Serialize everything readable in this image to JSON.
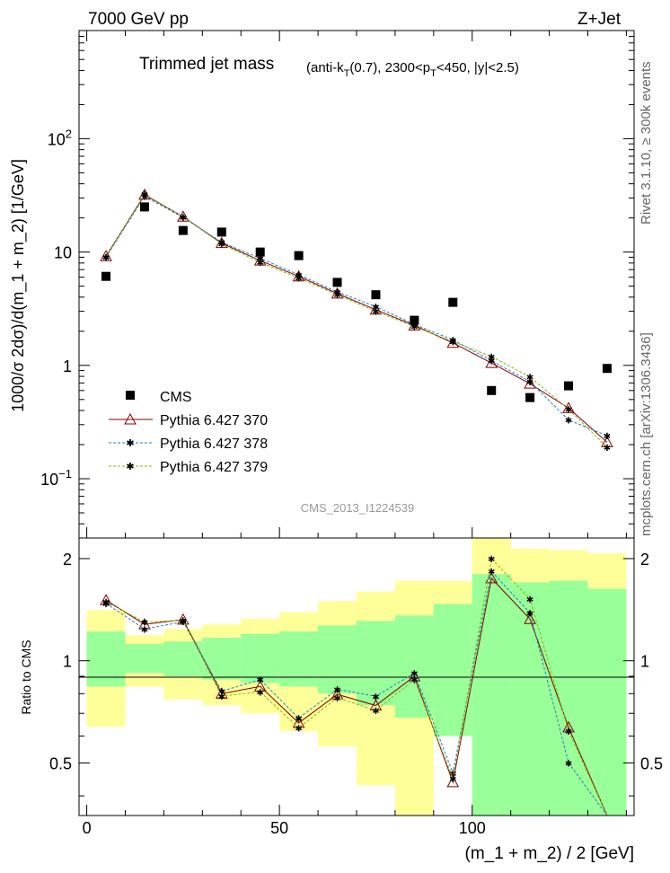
{
  "header": {
    "left": "7000 GeV pp",
    "right": "Z+Jet"
  },
  "side_labels": {
    "rivet": "Rivet 3.1.10, ≥ 300k events",
    "mcplots": "mcplots.cern.ch [arXiv:1306.3436]"
  },
  "chart_data": {
    "type": "line",
    "title_main": "Trimmed jet mass",
    "title_sub": "(anti-k",
    "title_sub_T": "T",
    "title_sub_rest": "(0.7), 2300<p",
    "title_sub_T2": "T",
    "title_sub_end": "<450, |y|<2.5)",
    "watermark": "CMS_2013_I1224539",
    "ylabel": "1000/σ 2dσ)/d(m_1 + m_2) [1/GeV]",
    "ratio_ylabel": "Ratio to CMS",
    "xlabel": "(m_1 + m_2) / 2 [GeV]",
    "xlim": [
      -2,
      142
    ],
    "ylim": [
      0.03,
      900
    ],
    "ratio_ylim": [
      0.35,
      2.3
    ],
    "x_ticks": [
      0,
      50,
      100
    ],
    "y_tick_labels": {
      "0.1": "10",
      "0.1_exp": "−1",
      "1": "1",
      "10": "10",
      "100": "10",
      "100_exp": "2"
    },
    "ratio_tick_labels": [
      "0.5",
      "1",
      "2"
    ],
    "bin_edges": [
      0,
      10,
      20,
      30,
      40,
      50,
      60,
      70,
      80,
      90,
      100,
      110,
      120,
      130,
      140
    ],
    "x": [
      5,
      15,
      25,
      35,
      45,
      55,
      65,
      75,
      85,
      95,
      105,
      115,
      125,
      135
    ],
    "data": {
      "name": "CMS",
      "values": [
        6.1,
        25,
        15.5,
        15,
        10,
        9.3,
        5.4,
        4.2,
        2.5,
        3.6,
        0.6,
        0.52,
        0.66,
        0.94
      ],
      "band_inner": [
        [
          0.84,
          1.22
        ],
        [
          0.92,
          1.12
        ],
        [
          0.9,
          1.14
        ],
        [
          0.88,
          1.17
        ],
        [
          0.86,
          1.2
        ],
        [
          0.84,
          1.22
        ],
        [
          0.8,
          1.27
        ],
        [
          0.74,
          1.31
        ],
        [
          0.68,
          1.36
        ],
        [
          0.6,
          1.47
        ],
        [
          0.3,
          1.8
        ],
        [
          0.3,
          1.7
        ],
        [
          0.3,
          1.72
        ],
        [
          0.3,
          1.63
        ]
      ],
      "band_outer": [
        [
          0.64,
          1.41
        ],
        [
          0.84,
          1.19
        ],
        [
          0.77,
          1.24
        ],
        [
          0.74,
          1.28
        ],
        [
          0.7,
          1.33
        ],
        [
          0.62,
          1.39
        ],
        [
          0.56,
          1.5
        ],
        [
          0.43,
          1.6
        ],
        [
          0.35,
          1.72
        ],
        [
          0.72,
          1.72
        ],
        [
          0.3,
          2.3
        ],
        [
          0.3,
          2.14
        ],
        [
          0.3,
          2.12
        ],
        [
          0.42,
          2.07
        ]
      ]
    },
    "series": [
      {
        "name": "Pythia 6.427 370",
        "color": "#800000",
        "dash": "",
        "marker": "triangle",
        "values": [
          9.2,
          32,
          20.5,
          12,
          8.4,
          6.1,
          4.3,
          3.1,
          2.25,
          1.58,
          1.05,
          0.69,
          0.42,
          0.21
        ]
      },
      {
        "name": "Pythia 6.427 378",
        "color": "#1e7fc8",
        "dash": "3,2",
        "marker": "star",
        "values": [
          9.0,
          31,
          20.2,
          12.2,
          8.8,
          6.3,
          4.45,
          3.3,
          2.3,
          1.68,
          1.1,
          0.72,
          0.33,
          0.24
        ]
      },
      {
        "name": "Pythia 6.427 379",
        "color": "#8cb400",
        "dash": "3,2",
        "marker": "star",
        "values": [
          9.1,
          32.5,
          20.4,
          11.8,
          8.1,
          5.9,
          4.2,
          3.0,
          2.2,
          1.62,
          1.2,
          0.79,
          0.41,
          0.19
        ]
      }
    ],
    "legend": [
      "CMS",
      "Pythia 6.427 370",
      "Pythia 6.427 378",
      "Pythia 6.427 379"
    ]
  }
}
